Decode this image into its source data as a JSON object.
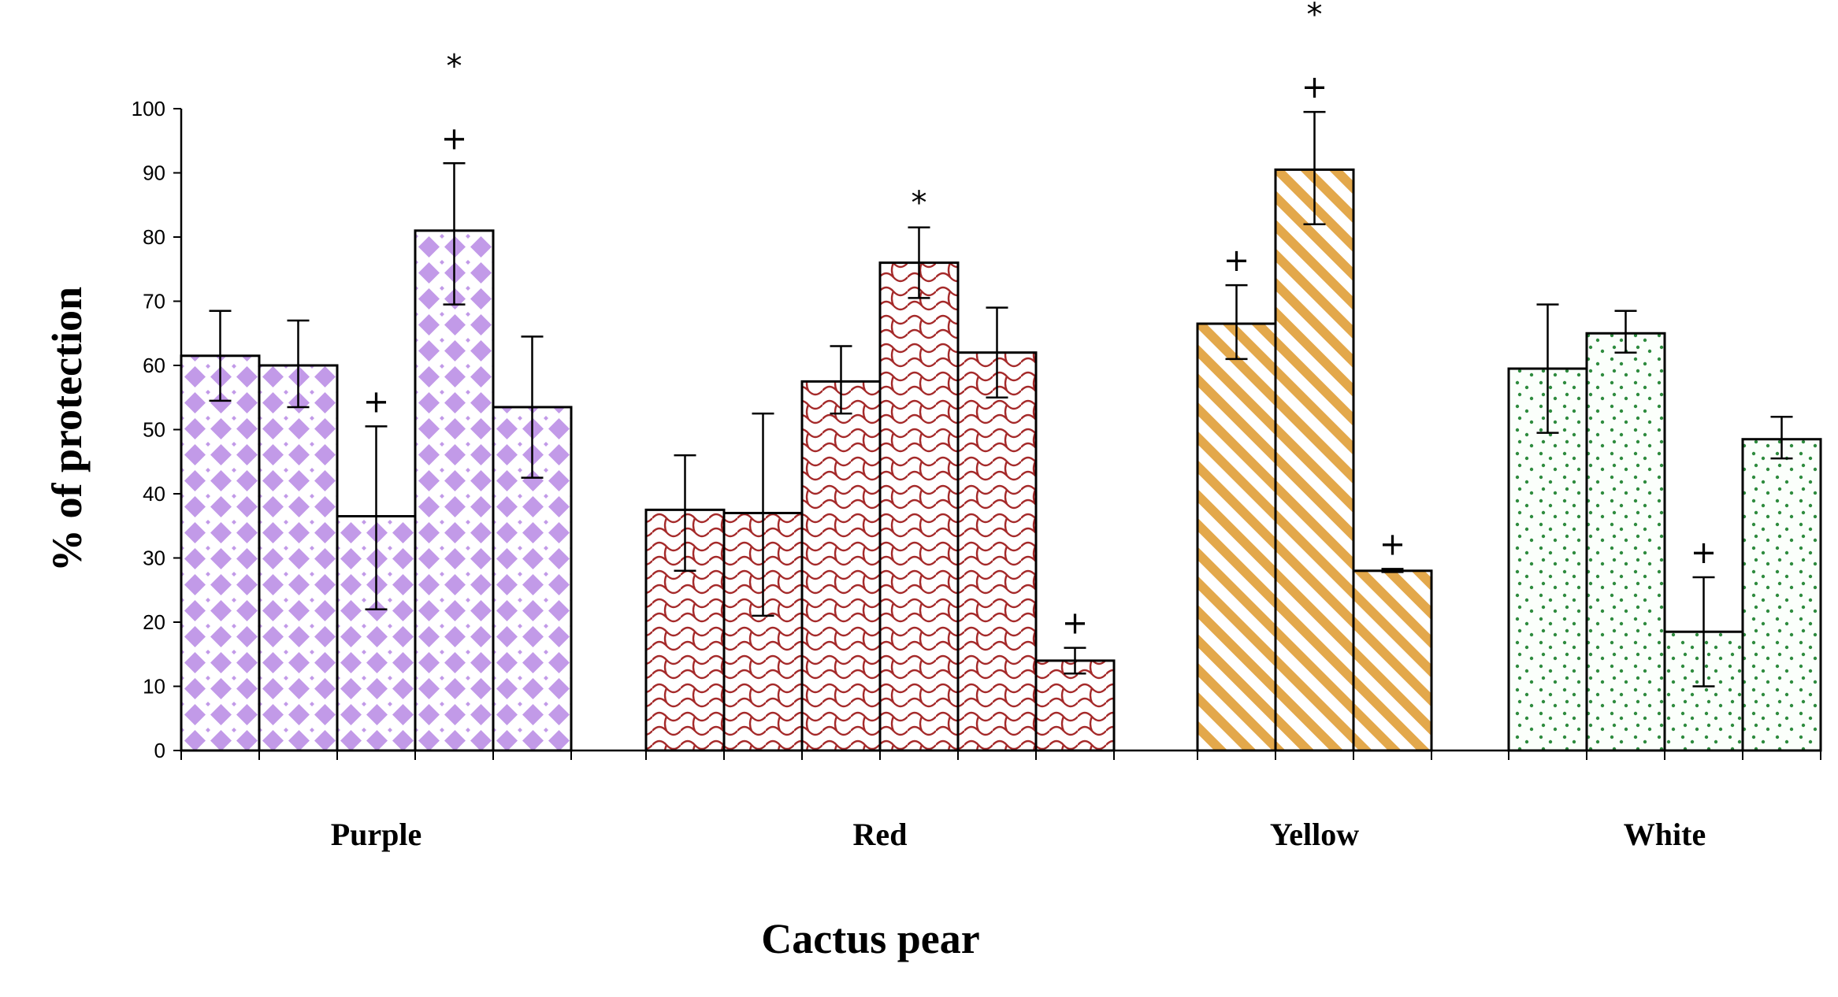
{
  "chart_data": {
    "type": "bar",
    "title": "",
    "xlabel": "Cactus pear",
    "ylabel": "% of protection",
    "ylim": [
      0,
      100
    ],
    "yticks": [
      0,
      10,
      20,
      30,
      40,
      50,
      60,
      70,
      80,
      90,
      100
    ],
    "grid": false,
    "legend": "none",
    "groups": [
      {
        "name": "Purple",
        "pattern": "diamond-dots",
        "color": "#c29ae8",
        "bars": [
          {
            "value": 61.5,
            "err_low": 54.5,
            "err_high": 68.5,
            "marks": []
          },
          {
            "value": 60.0,
            "err_low": 53.5,
            "err_high": 67.0,
            "marks": []
          },
          {
            "value": 36.5,
            "err_low": 22.0,
            "err_high": 50.5,
            "marks": [
              "+"
            ]
          },
          {
            "value": 81.0,
            "err_low": 69.5,
            "err_high": 91.5,
            "marks": [
              "+",
              "*"
            ]
          },
          {
            "value": 53.5,
            "err_low": 42.5,
            "err_high": 64.5,
            "marks": []
          }
        ]
      },
      {
        "name": "Red",
        "pattern": "waves",
        "color": "#a52a2a",
        "bars": [
          {
            "value": 37.5,
            "err_low": 28.0,
            "err_high": 46.0,
            "marks": []
          },
          {
            "value": 37.0,
            "err_low": 21.0,
            "err_high": 52.5,
            "marks": []
          },
          {
            "value": 57.5,
            "err_low": 52.5,
            "err_high": 63.0,
            "marks": []
          },
          {
            "value": 76.0,
            "err_low": 70.5,
            "err_high": 81.5,
            "marks": [
              "*"
            ]
          },
          {
            "value": 62.0,
            "err_low": 55.0,
            "err_high": 69.0,
            "marks": []
          },
          {
            "value": 14.0,
            "err_low": 12.0,
            "err_high": 16.0,
            "marks": [
              "+"
            ]
          }
        ]
      },
      {
        "name": "Yellow",
        "pattern": "diagonal-stripes",
        "color": "#e3a84b",
        "bars": [
          {
            "value": 66.5,
            "err_low": 61.0,
            "err_high": 72.5,
            "marks": [
              "+"
            ]
          },
          {
            "value": 90.5,
            "err_low": 82.0,
            "err_high": 99.5,
            "marks": [
              "+",
              "*"
            ]
          },
          {
            "value": 28.0,
            "err_low": 27.8,
            "err_high": 28.3,
            "marks": [
              "+"
            ]
          }
        ]
      },
      {
        "name": "White",
        "pattern": "green-dots",
        "color": "#2e8b3e",
        "bars": [
          {
            "value": 59.5,
            "err_low": 49.5,
            "err_high": 69.5,
            "marks": []
          },
          {
            "value": 65.0,
            "err_low": 62.0,
            "err_high": 68.5,
            "marks": []
          },
          {
            "value": 18.5,
            "err_low": 10.0,
            "err_high": 27.0,
            "marks": [
              "+"
            ]
          },
          {
            "value": 48.5,
            "err_low": 45.5,
            "err_high": 52.0,
            "marks": []
          }
        ]
      }
    ]
  }
}
